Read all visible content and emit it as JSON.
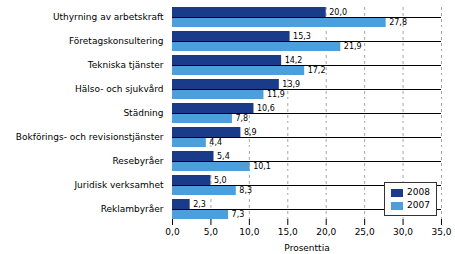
{
  "chart_data": {
    "type": "bar",
    "orientation": "horizontal",
    "categories": [
      "Uthyrning av arbetskraft",
      "Företagskonsultering",
      "Tekniska tjänster",
      "Hälso- och sjukvård",
      "Städning",
      "Bokförings- och revisionstjänster",
      "Resebyråer",
      "Juridisk verksamhet",
      "Reklambyråer"
    ],
    "series": [
      {
        "name": "2008",
        "color": "#1a3a8a",
        "values": [
          20.0,
          15.3,
          14.2,
          13.9,
          10.6,
          8.9,
          5.4,
          5.0,
          2.3
        ],
        "value_labels": [
          "20,0",
          "15,3",
          "14,2",
          "13,9",
          "10,6",
          "8,9",
          "5,4",
          "5,0",
          "2,3"
        ]
      },
      {
        "name": "2007",
        "color": "#4d9fdb",
        "values": [
          27.8,
          21.9,
          17.2,
          11.9,
          7.8,
          4.4,
          10.1,
          8.3,
          7.3
        ],
        "value_labels": [
          "27,8",
          "21,9",
          "17,2",
          "11,9",
          "7,8",
          "4,4",
          "10,1",
          "8,3",
          "7,3"
        ]
      }
    ],
    "xlabel": "Prosenttia",
    "xlim": [
      0,
      35
    ],
    "xticks": [
      {
        "value": 0,
        "label": "0,0"
      },
      {
        "value": 5,
        "label": "5,0"
      },
      {
        "value": 10,
        "label": "10,0"
      },
      {
        "value": 15,
        "label": "15,0"
      },
      {
        "value": 20,
        "label": "20,0"
      },
      {
        "value": 25,
        "label": "25,0"
      },
      {
        "value": 30,
        "label": "30,0"
      },
      {
        "value": 35,
        "label": "35,0"
      }
    ],
    "grid": true,
    "data_labels": true,
    "legend": "lower right"
  }
}
